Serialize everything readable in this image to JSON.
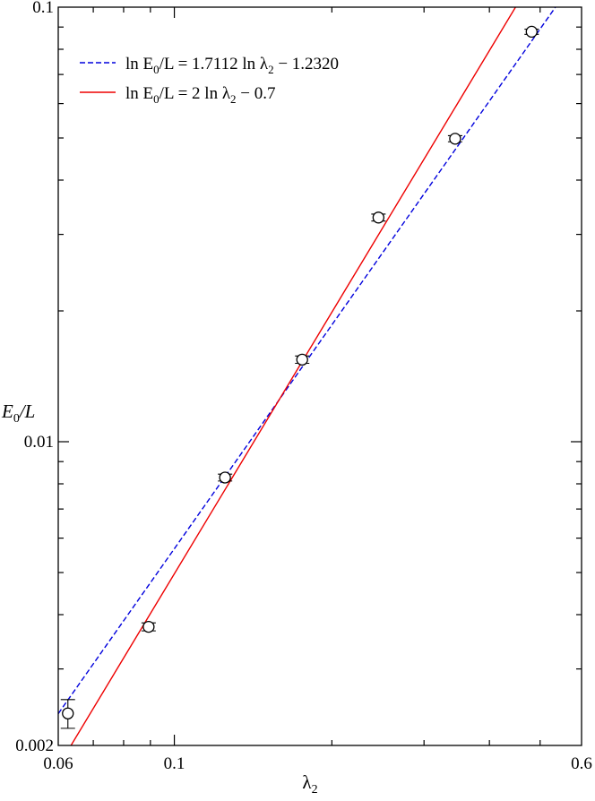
{
  "chart_data": {
    "type": "scatter",
    "x_scale": "log",
    "y_scale": "log",
    "xlim": [
      0.06,
      0.6
    ],
    "ylim": [
      0.002,
      0.1
    ],
    "xlabel": {
      "main": "λ",
      "sub": "2"
    },
    "ylabel": {
      "main": "E",
      "sub": "0",
      "rest": "/L"
    },
    "x_ticks": [
      {
        "value": 0.06,
        "label": "0.06"
      },
      {
        "value": 0.1,
        "label": "0.1"
      },
      {
        "value": 0.6,
        "label": "0.6"
      }
    ],
    "y_ticks": [
      {
        "value": 0.002,
        "label": "0.002"
      },
      {
        "value": 0.01,
        "label": "0.01"
      },
      {
        "value": 0.1,
        "label": "0.1"
      }
    ],
    "points": [
      {
        "x": 0.0626,
        "y": 0.00237,
        "err": 0.00018
      },
      {
        "x": 0.0893,
        "y": 0.00375,
        "err": 8e-05
      },
      {
        "x": 0.125,
        "y": 0.00827,
        "err": 0.00015
      },
      {
        "x": 0.1755,
        "y": 0.01545,
        "err": 0.0003
      },
      {
        "x": 0.2455,
        "y": 0.0328,
        "err": 0.0006
      },
      {
        "x": 0.344,
        "y": 0.0498,
        "err": 0.0008
      },
      {
        "x": 0.4817,
        "y": 0.0878,
        "err": 0.0012
      }
    ],
    "series": [
      {
        "type": "fit-line",
        "slope": 1.7112,
        "intercept": -1.232,
        "color": "#0000dd",
        "dash": "dashed",
        "legend": {
          "lhs_pre": "ln E",
          "lhs_sub": "0",
          "lhs_post": "/L",
          "eq": "=",
          "rhs_pre": "1.7112 ln λ",
          "rhs_sub": "2",
          "rhs_post": " − 1.2320"
        }
      },
      {
        "type": "fit-line",
        "slope": 2,
        "intercept": -0.7,
        "color": "#ee0000",
        "dash": "solid",
        "legend": {
          "lhs_pre": "ln E",
          "lhs_sub": "0",
          "lhs_post": "/L",
          "eq": "=",
          "rhs_pre": "2 ln λ",
          "rhs_sub": "2",
          "rhs_post": " − 0.7"
        }
      }
    ],
    "legend_position": "top-left",
    "grid": false
  }
}
